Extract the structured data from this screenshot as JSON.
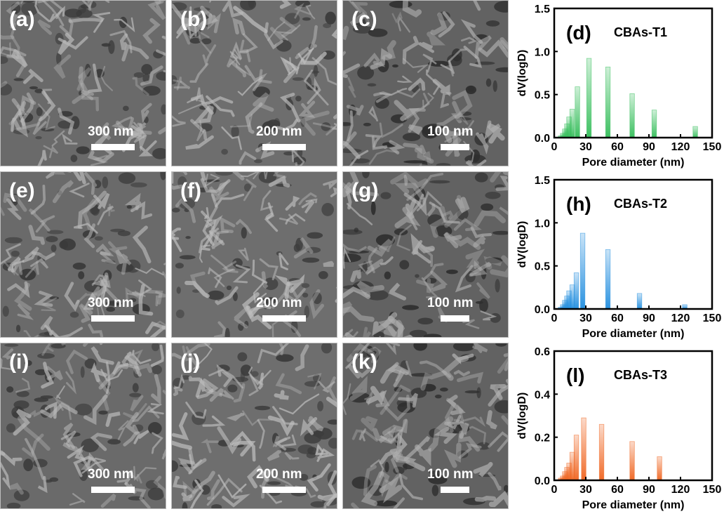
{
  "sem_panels": [
    {
      "label": "(a)",
      "scale_bar": "300 nm"
    },
    {
      "label": "(b)",
      "scale_bar": "200 nm"
    },
    {
      "label": "(c)",
      "scale_bar": "100 nm"
    },
    {
      "label": "(e)",
      "scale_bar": "300 nm"
    },
    {
      "label": "(f)",
      "scale_bar": "200 nm"
    },
    {
      "label": "(g)",
      "scale_bar": "100 nm"
    },
    {
      "label": "(i)",
      "scale_bar": "300 nm"
    },
    {
      "label": "(j)",
      "scale_bar": "200 nm"
    },
    {
      "label": "(k)",
      "scale_bar": "100 nm"
    }
  ],
  "chart_data": [
    {
      "type": "bar",
      "panel_label": "(d)",
      "title": "CBAs-T1",
      "xlabel": "Pore diameter (nm)",
      "ylabel": "dV(logD)",
      "xlim": [
        0,
        150
      ],
      "ylim": [
        0,
        1.5
      ],
      "xticks": [
        0,
        30,
        60,
        90,
        120,
        150
      ],
      "yticks": [
        0.0,
        0.5,
        1.0,
        1.5
      ],
      "ytick_labels": [
        "0.0",
        "0.5",
        "1.0",
        "1.5"
      ],
      "color": "#3cc060",
      "x": [
        6,
        8,
        10,
        12,
        14,
        17,
        22,
        33,
        51,
        74,
        95,
        134
      ],
      "values": [
        0.02,
        0.05,
        0.1,
        0.16,
        0.24,
        0.33,
        0.59,
        0.92,
        0.82,
        0.51,
        0.32,
        0.13
      ]
    },
    {
      "type": "bar",
      "panel_label": "(h)",
      "title": "CBAs-T2",
      "xlabel": "Pore diameter (nm)",
      "ylabel": "dV(logD)",
      "xlim": [
        0,
        150
      ],
      "ylim": [
        0,
        1.5
      ],
      "xticks": [
        0,
        30,
        60,
        90,
        120,
        150
      ],
      "yticks": [
        0.0,
        0.5,
        1.0,
        1.5
      ],
      "ytick_labels": [
        "0.0",
        "0.5",
        "1.0",
        "1.5"
      ],
      "color": "#2a92e0",
      "x": [
        6,
        8,
        10,
        12,
        14,
        17,
        21,
        27,
        51,
        81,
        124
      ],
      "values": [
        0.02,
        0.05,
        0.1,
        0.15,
        0.21,
        0.28,
        0.42,
        0.88,
        0.69,
        0.18,
        0.05
      ]
    },
    {
      "type": "bar",
      "panel_label": "(l)",
      "title": "CBAs-T3",
      "xlabel": "Pore diameter (nm)",
      "ylabel": "dV(logD)",
      "xlim": [
        0,
        150
      ],
      "ylim": [
        0,
        0.6
      ],
      "xticks": [
        0,
        30,
        60,
        90,
        120,
        150
      ],
      "yticks": [
        0.0,
        0.2,
        0.4,
        0.6
      ],
      "ytick_labels": [
        "0.0",
        "0.2",
        "0.4",
        "0.6"
      ],
      "color": "#f06a28",
      "x": [
        6,
        8,
        10,
        12,
        14,
        17,
        21,
        28,
        45,
        74,
        100
      ],
      "values": [
        0.01,
        0.02,
        0.04,
        0.06,
        0.08,
        0.13,
        0.21,
        0.29,
        0.26,
        0.18,
        0.11
      ]
    }
  ]
}
